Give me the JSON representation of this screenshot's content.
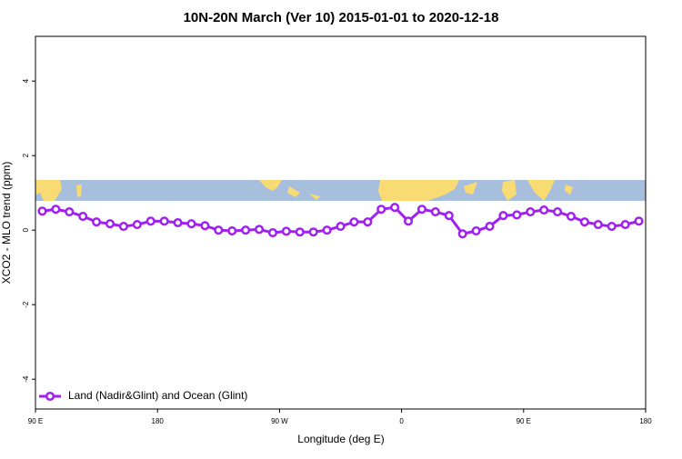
{
  "chart_data": {
    "type": "line",
    "title": "10N-20N March (Ver 10)   2015-01-01 to 2020-12-18",
    "x_label": "Longitude (deg E)",
    "y_label": "XCO2 - MLO trend (ppm)",
    "xlim": [
      90,
      540
    ],
    "xticks": [
      {
        "value": 90,
        "label": "90 E"
      },
      {
        "value": 180,
        "label": "180"
      },
      {
        "value": 270,
        "label": "90 W"
      },
      {
        "value": 360,
        "label": "0"
      },
      {
        "value": 450,
        "label": "90 E"
      },
      {
        "value": 540,
        "label": "180"
      }
    ],
    "ylim": [
      -4.8,
      5.2
    ],
    "yticks": [
      -4,
      -2,
      0,
      2,
      4
    ],
    "legend": "bottom-left",
    "x": [
      95,
      105,
      115,
      125,
      135,
      145,
      155,
      165,
      175,
      185,
      195,
      205,
      215,
      225,
      235,
      245,
      255,
      265,
      275,
      285,
      295,
      305,
      315,
      325,
      335,
      345,
      355,
      365,
      375,
      385,
      395,
      405,
      415,
      425,
      435,
      445,
      455,
      465,
      475,
      485,
      495,
      505,
      515,
      525,
      535
    ],
    "series": [
      {
        "name": "Land (Nadir&Glint) and Ocean (Glint)",
        "color": "#a020f0",
        "values": [
          0.51,
          0.56,
          0.49,
          0.37,
          0.22,
          0.17,
          0.1,
          0.15,
          0.24,
          0.24,
          0.2,
          0.17,
          0.12,
          0.0,
          -0.02,
          0.0,
          0.02,
          -0.07,
          -0.03,
          -0.05,
          -0.05,
          0.0,
          0.1,
          0.22,
          0.22,
          0.56,
          0.61,
          0.24,
          0.56,
          0.49,
          0.39,
          -0.1,
          -0.02,
          0.1,
          0.39,
          0.41,
          0.49,
          0.54,
          0.49,
          0.37,
          0.22,
          0.15,
          0.1,
          0.15,
          0.24
        ]
      }
    ]
  }
}
